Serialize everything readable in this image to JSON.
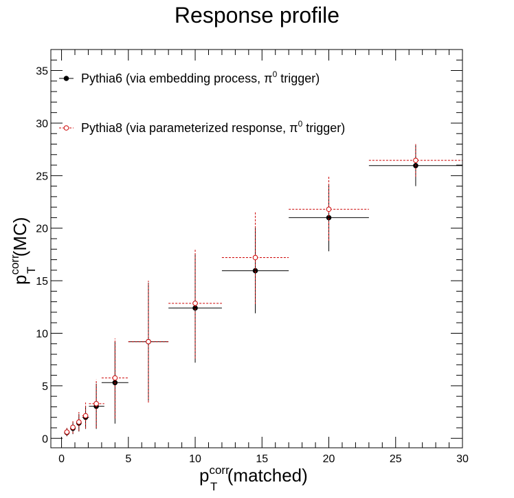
{
  "chart_data": {
    "type": "scatter",
    "title": "Response profile",
    "xlabel": {
      "base": "p",
      "sup": "corr",
      "sub": "T",
      "rest": "(matched)"
    },
    "ylabel": {
      "base": "p",
      "sup": "corr",
      "sub": "T",
      "rest": "(MC)"
    },
    "xlim": [
      -0.8,
      30
    ],
    "ylim": [
      -0.9,
      37
    ],
    "xticks": [
      "0",
      "5",
      "10",
      "15",
      "20",
      "25",
      "30"
    ],
    "yticks": [
      "0",
      "5",
      "10",
      "15",
      "20",
      "25",
      "30",
      "35"
    ],
    "grid": false,
    "legend_position": "top-left",
    "series": [
      {
        "name": "Pythia6 (via embedding process, π⁰ trigger)",
        "legend": {
          "main": "Pythia6 (via embedding process, π",
          "sup": "0",
          "tail": " trigger)"
        },
        "color": "#000000",
        "marker": "filled-circle",
        "line": "solid",
        "points": [
          {
            "x": 0.4,
            "y": 0.55,
            "xlo": 0.2,
            "xhi": 0.6,
            "ylo": 0.2,
            "yhi": 0.95
          },
          {
            "x": 0.85,
            "y": 0.95,
            "xlo": 0.65,
            "xhi": 1.05,
            "ylo": 0.4,
            "yhi": 1.6
          },
          {
            "x": 1.3,
            "y": 1.45,
            "xlo": 1.1,
            "xhi": 1.5,
            "ylo": 0.65,
            "yhi": 2.3
          },
          {
            "x": 1.8,
            "y": 2.0,
            "xlo": 1.55,
            "xhi": 2.05,
            "ylo": 0.9,
            "yhi": 3.1
          },
          {
            "x": 2.6,
            "y": 3.05,
            "xlo": 2.05,
            "xhi": 3.2,
            "ylo": 0.9,
            "yhi": 5.2
          },
          {
            "x": 4.0,
            "y": 5.3,
            "xlo": 3.0,
            "xhi": 5.0,
            "ylo": 1.4,
            "yhi": 9.2
          },
          {
            "x": 6.5,
            "y": 9.2,
            "xlo": 5.0,
            "xhi": 8.0,
            "ylo": 3.6,
            "yhi": 14.8
          },
          {
            "x": 10.0,
            "y": 12.4,
            "xlo": 8.0,
            "xhi": 12.0,
            "ylo": 7.2,
            "yhi": 17.6
          },
          {
            "x": 14.5,
            "y": 15.95,
            "xlo": 12.0,
            "xhi": 17.0,
            "ylo": 11.9,
            "yhi": 20.0
          },
          {
            "x": 20.0,
            "y": 21.0,
            "xlo": 17.0,
            "xhi": 23.0,
            "ylo": 17.8,
            "yhi": 24.2
          },
          {
            "x": 26.5,
            "y": 25.95,
            "xlo": 23.0,
            "xhi": 30.0,
            "ylo": 24.0,
            "yhi": 27.9
          }
        ]
      },
      {
        "name": "Pythia8 (via parameterized response, π⁰ trigger)",
        "legend": {
          "main": "Pythia8 (via parameterized response, π",
          "sup": "0",
          "tail": " trigger)"
        },
        "color": "#cc0000",
        "marker": "open-circle",
        "line": "dashed",
        "points": [
          {
            "x": 0.4,
            "y": 0.6,
            "xlo": 0.2,
            "xhi": 0.6,
            "ylo": 0.25,
            "yhi": 1.0
          },
          {
            "x": 0.85,
            "y": 1.05,
            "xlo": 0.65,
            "xhi": 1.05,
            "ylo": 0.45,
            "yhi": 1.7
          },
          {
            "x": 1.3,
            "y": 1.55,
            "xlo": 1.1,
            "xhi": 1.5,
            "ylo": 0.7,
            "yhi": 2.5
          },
          {
            "x": 1.8,
            "y": 2.15,
            "xlo": 1.55,
            "xhi": 2.05,
            "ylo": 0.95,
            "yhi": 3.4
          },
          {
            "x": 2.6,
            "y": 3.3,
            "xlo": 2.05,
            "xhi": 3.2,
            "ylo": 1.0,
            "yhi": 5.6
          },
          {
            "x": 4.0,
            "y": 5.75,
            "xlo": 3.0,
            "xhi": 5.0,
            "ylo": 1.9,
            "yhi": 9.5
          },
          {
            "x": 6.5,
            "y": 9.2,
            "xlo": 5.0,
            "xhi": 8.0,
            "ylo": 3.4,
            "yhi": 15.0
          },
          {
            "x": 10.0,
            "y": 12.85,
            "xlo": 8.0,
            "xhi": 12.0,
            "ylo": 7.6,
            "yhi": 18.0
          },
          {
            "x": 14.5,
            "y": 17.2,
            "xlo": 12.0,
            "xhi": 17.0,
            "ylo": 12.8,
            "yhi": 21.6
          },
          {
            "x": 20.0,
            "y": 21.8,
            "xlo": 17.0,
            "xhi": 23.0,
            "ylo": 18.8,
            "yhi": 24.9
          },
          {
            "x": 26.5,
            "y": 26.45,
            "xlo": 23.0,
            "xhi": 30.0,
            "ylo": 24.9,
            "yhi": 28.0
          }
        ]
      }
    ]
  }
}
